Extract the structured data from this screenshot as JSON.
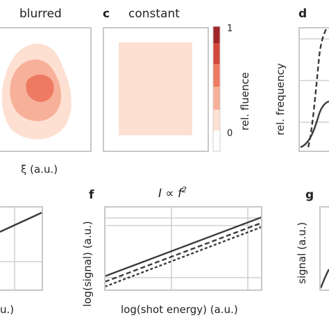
{
  "panels": {
    "b": {
      "title": "blurred",
      "xlabel": "ξ (a.u.)"
    },
    "c": {
      "letter": "c",
      "title": "constant"
    },
    "colorbar": {
      "label": "rel. fluence",
      "tick_max": "1",
      "tick_min": "0",
      "colors": [
        "#fde0d2",
        "#f7b09a",
        "#ee7a62",
        "#d2473c",
        "#a12628"
      ]
    },
    "d": {
      "letter": "d",
      "ylabel": "rel. frequency"
    },
    "e": {
      "xlabel": "u.)"
    },
    "f": {
      "letter": "f",
      "title": "I ∝ f",
      "title_exp": "2",
      "xlabel": "log(shot energy) (a.u.)",
      "ylabel": "log(signal) (a.u.)"
    },
    "g": {
      "letter": "g",
      "ylabel": "signal (a.u.)"
    }
  },
  "chart_data": [
    {
      "type": "heatmap",
      "panel": "b",
      "title": "blurred",
      "xlabel": "ξ (a.u.)",
      "levels": [
        0.2,
        0.4,
        0.6,
        0.8
      ]
    },
    {
      "type": "heatmap",
      "panel": "c",
      "title": "constant",
      "levels": [
        0.2
      ],
      "colorbar": {
        "label": "rel. fluence",
        "range": [
          0,
          1
        ]
      }
    },
    {
      "type": "line",
      "panel": "d",
      "ylabel": "rel. frequency",
      "series": [
        {
          "style": "dashed"
        },
        {
          "style": "solid"
        }
      ]
    },
    {
      "type": "line",
      "panel": "f",
      "title": "I ∝ f²",
      "xlabel": "log(shot energy) (a.u.)",
      "ylabel": "log(signal) (a.u.)",
      "series": [
        {
          "style": "solid"
        },
        {
          "style": "dashed"
        },
        {
          "style": "dotted"
        }
      ]
    },
    {
      "type": "line",
      "panel": "g",
      "ylabel": "signal (a.u.)"
    }
  ]
}
